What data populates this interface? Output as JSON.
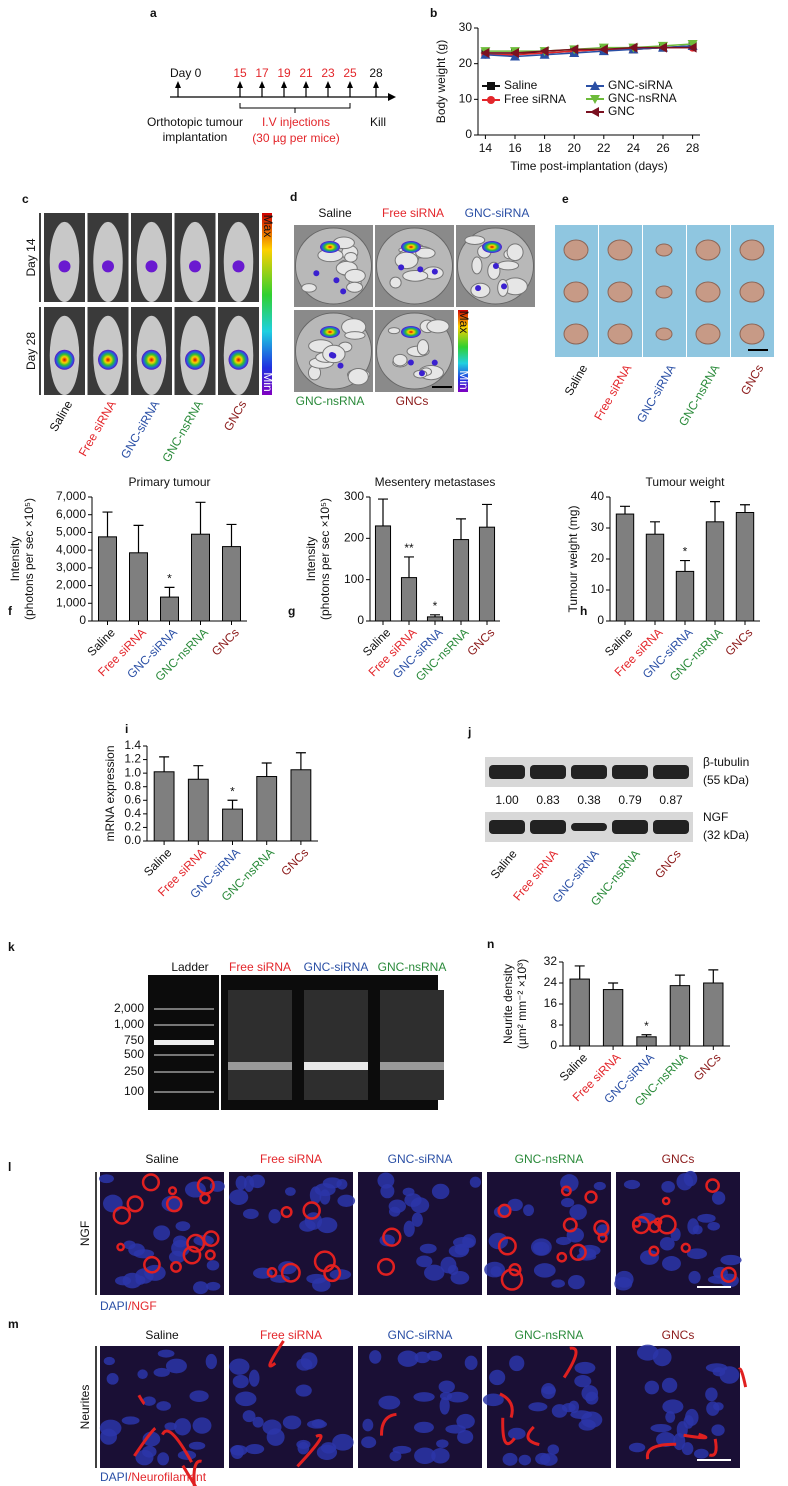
{
  "groups": [
    {
      "name": "Saline",
      "color": "#111111"
    },
    {
      "name": "Free siRNA",
      "color": "#e3262b"
    },
    {
      "name": "GNC-siRNA",
      "color": "#2a4fa5"
    },
    {
      "name": "GNC-nsRNA",
      "color": "#2a8a3a"
    },
    {
      "name": "GNCs",
      "color": "#8b1a1a"
    }
  ],
  "panels": {
    "a": {
      "label": "a",
      "start": "Day 0",
      "days": [
        "15",
        "17",
        "19",
        "21",
        "23",
        "25"
      ],
      "end": "28",
      "implant": [
        "Orthotopic tumour",
        "implantation"
      ],
      "injections": [
        "I.V injections",
        "(30 µg per mice)"
      ],
      "kill": "Kill",
      "injection_color": "#e3262b"
    },
    "c": {
      "label": "c",
      "rows": [
        "Day 14",
        "Day 28"
      ],
      "scale": [
        "Max",
        "Min"
      ]
    },
    "d": {
      "label": "d",
      "scale": [
        "Max",
        "Min"
      ]
    },
    "e": {
      "label": "e"
    },
    "j": {
      "label": "j",
      "bands": [
        [
          "β-tubulin",
          "(55 kDa)"
        ],
        [
          "NGF",
          "(32 kDa)"
        ]
      ],
      "ratios": [
        "1.00",
        "0.83",
        "0.38",
        "0.79",
        "0.87"
      ]
    },
    "k": {
      "label": "k",
      "lane": "Ladder",
      "sizes": [
        "2,000",
        "1,000",
        "750",
        "500",
        "250",
        "100"
      ]
    },
    "l": {
      "label": "l",
      "row": "NGF",
      "stain": [
        "DAPI",
        "/NGF"
      ]
    },
    "m": {
      "label": "m",
      "row": "Neurites",
      "stain": [
        "DAPI",
        "/Neurofilament"
      ]
    }
  },
  "chart_data": [
    {
      "type": "line",
      "label": "b",
      "ylabel": [
        "Body weight (g)"
      ],
      "xlabel": "Time post-implantation (days)",
      "x": [
        14,
        16,
        18,
        20,
        22,
        24,
        26,
        28
      ],
      "xlim": [
        13.5,
        28.5
      ],
      "xticks": [
        14,
        16,
        18,
        20,
        22,
        24,
        26,
        28
      ],
      "ylim": [
        0,
        30
      ],
      "yticks": [
        0,
        10,
        20,
        30
      ],
      "series": [
        {
          "name": "Saline",
          "color": "#111111",
          "marker": "square",
          "values": [
            23,
            23,
            23,
            23.5,
            24,
            24,
            24.5,
            25
          ]
        },
        {
          "name": "Free siRNA",
          "color": "#e3262b",
          "marker": "circle",
          "values": [
            22.5,
            22.5,
            23,
            23.5,
            24,
            24,
            24.5,
            24.5
          ]
        },
        {
          "name": "GNC-siRNA",
          "color": "#2a4fa5",
          "marker": "triangle-up",
          "values": [
            22.5,
            22,
            22.5,
            23,
            23.5,
            24,
            24.5,
            25
          ]
        },
        {
          "name": "GNC-nsRNA",
          "color": "#6dbb3a",
          "marker": "triangle-down",
          "values": [
            23.5,
            23.5,
            23.5,
            24,
            24.5,
            24.5,
            25,
            25.5
          ]
        },
        {
          "name": "GNC",
          "color": "#7a1020",
          "marker": "triangle-left",
          "values": [
            23,
            23,
            23.5,
            24,
            24,
            24.5,
            24.5,
            24.5
          ]
        }
      ]
    },
    {
      "type": "bar",
      "label": "f",
      "title": "Primary tumour",
      "ylabel": [
        "Intensity",
        "(photons per sec ×10⁵)"
      ],
      "categories": [
        "Saline",
        "Free siRNA",
        "GNC-siRNA",
        "GNC-nsRNA",
        "GNCs"
      ],
      "category_colors": [
        "#111111",
        "#e3262b",
        "#2a4fa5",
        "#2a8a3a",
        "#8b1a1a"
      ],
      "color": "#7f7f7f",
      "ylim": [
        0,
        7000
      ],
      "yticks": [
        0,
        {
          "value": 1000,
          "label": "1,000"
        },
        {
          "value": 2000,
          "label": "2,000"
        },
        {
          "value": 3000,
          "label": "3,000"
        },
        {
          "value": 4000,
          "label": "4,000"
        },
        {
          "value": 5000,
          "label": "5,000"
        },
        {
          "value": 6000,
          "label": "6,000"
        },
        {
          "value": 7000,
          "label": "7,000"
        }
      ],
      "values": [
        4750,
        3850,
        1350,
        4900,
        4200
      ],
      "errors": [
        1400,
        1550,
        550,
        1800,
        1250
      ],
      "significance": [
        null,
        null,
        "*",
        null,
        null
      ]
    },
    {
      "type": "bar",
      "label": "g",
      "title": "Mesentery metastases",
      "ylabel": [
        "Intensity",
        "(photons per sec ×10⁵)"
      ],
      "categories": [
        "Saline",
        "Free siRNA",
        "GNC-siRNA",
        "GNC-nsRNA",
        "GNCs"
      ],
      "category_colors": [
        "#111111",
        "#e3262b",
        "#2a4fa5",
        "#2a8a3a",
        "#8b1a1a"
      ],
      "color": "#7f7f7f",
      "ylim": [
        0,
        300
      ],
      "yticks": [
        0,
        100,
        200,
        300
      ],
      "values": [
        230,
        105,
        10,
        197,
        227
      ],
      "errors": [
        65,
        50,
        5,
        50,
        55
      ],
      "significance": [
        null,
        "**",
        "*",
        null,
        null
      ]
    },
    {
      "type": "bar",
      "label": "h",
      "title": "Tumour weight",
      "ylabel": [
        "Tumour weight (mg)"
      ],
      "categories": [
        "Saline",
        "Free siRNA",
        "GNC-siRNA",
        "GNC-nsRNA",
        "GNCs"
      ],
      "category_colors": [
        "#111111",
        "#e3262b",
        "#2a4fa5",
        "#2a8a3a",
        "#8b1a1a"
      ],
      "color": "#7f7f7f",
      "ylim": [
        0,
        40
      ],
      "yticks": [
        0,
        10,
        20,
        30,
        40
      ],
      "values": [
        34.5,
        28,
        16,
        32,
        35
      ],
      "errors": [
        2.5,
        4,
        3.5,
        6.5,
        2.5
      ],
      "significance": [
        null,
        null,
        "*",
        null,
        null
      ]
    },
    {
      "type": "bar",
      "label": "i",
      "ylabel": [
        "mRNA expression"
      ],
      "categories": [
        "Saline",
        "Free siRNA",
        "GNC-siRNA",
        "GNC-nsRNA",
        "GNCs"
      ],
      "category_colors": [
        "#111111",
        "#e3262b",
        "#2a4fa5",
        "#2a8a3a",
        "#8b1a1a"
      ],
      "color": "#7f7f7f",
      "ylim": [
        0,
        1.4
      ],
      "yticks": [
        {
          "value": 0,
          "label": "0.0"
        },
        0.2,
        0.4,
        0.6,
        0.8,
        {
          "value": 1,
          "label": "1.0"
        },
        1.2,
        1.4
      ],
      "values": [
        1.02,
        0.91,
        0.47,
        0.95,
        1.05
      ],
      "errors": [
        0.22,
        0.2,
        0.13,
        0.2,
        0.25
      ],
      "significance": [
        null,
        null,
        "*",
        null,
        null
      ]
    },
    {
      "type": "bar",
      "label": "n",
      "ylabel": [
        "Neurite density",
        "(µm² mm⁻² ×10³)"
      ],
      "categories": [
        "Saline",
        "Free siRNA",
        "GNC-siRNA",
        "GNC-nsRNA",
        "GNCs"
      ],
      "category_colors": [
        "#111111",
        "#e3262b",
        "#2a4fa5",
        "#2a8a3a",
        "#8b1a1a"
      ],
      "color": "#7f7f7f",
      "ylim": [
        0,
        32
      ],
      "yticks": [
        0,
        8,
        16,
        24,
        32
      ],
      "values": [
        25.5,
        21.5,
        3.5,
        23,
        24
      ],
      "errors": [
        5,
        2.5,
        0.8,
        4,
        5
      ],
      "significance": [
        null,
        null,
        "*",
        null,
        null
      ]
    }
  ]
}
